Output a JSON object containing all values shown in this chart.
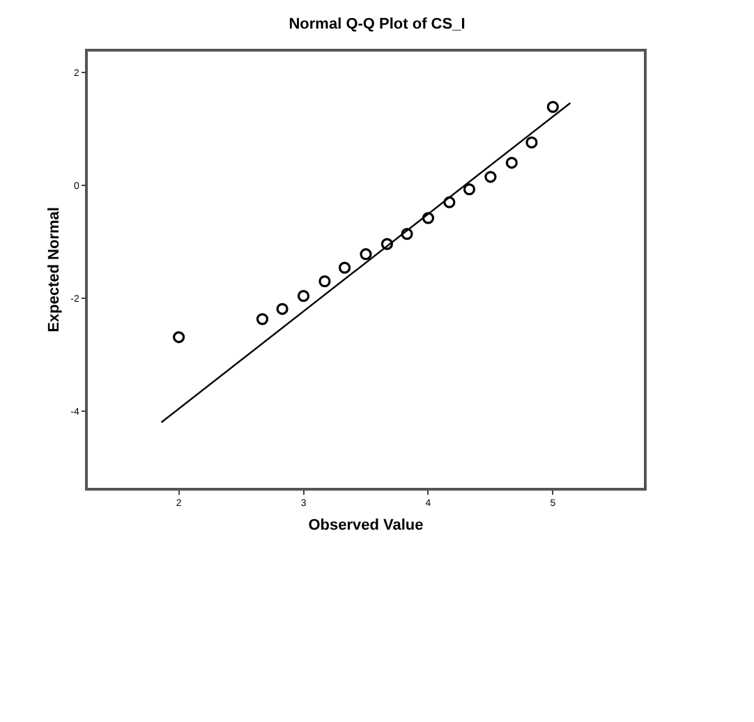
{
  "chart_data": {
    "type": "scatter",
    "title": "Normal Q-Q Plot of CS_I",
    "xlabel": "Observed Value",
    "ylabel": "Expected Normal",
    "xlim": [
      1.27,
      5.73
    ],
    "xticks": [
      2,
      3,
      4,
      5
    ],
    "ylim": [
      -5.36,
      2.37
    ],
    "yticks": [
      -4,
      -2,
      0,
      2
    ],
    "legend": false,
    "series": [
      {
        "marker": "circle",
        "color": "#000000",
        "x": [
          2,
          2.67,
          2.83,
          3,
          3.17,
          3.33,
          3.5,
          3.67,
          3.83,
          4,
          4.17,
          4.33,
          4.5,
          4.67,
          4.83,
          5
        ],
        "values": [
          -2.69,
          -2.37,
          -2.19,
          -1.96,
          -1.7,
          -1.46,
          -1.22,
          -1.04,
          -0.86,
          -0.58,
          -0.3,
          -0.07,
          0.15,
          0.4,
          0.76,
          1.39
        ]
      },
      {
        "type": "line",
        "color": "#000000",
        "x": [
          1.86,
          5.14
        ],
        "values": [
          -4.2,
          1.46
        ]
      }
    ]
  }
}
